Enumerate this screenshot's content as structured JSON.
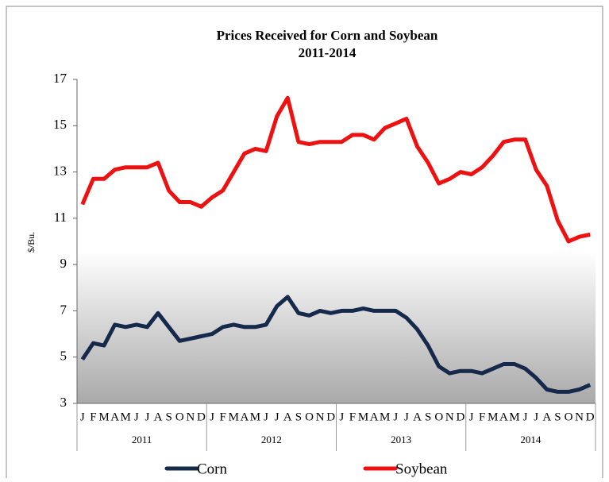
{
  "chart_data": {
    "type": "line",
    "title": "Prices Received for Corn and Soybean",
    "subtitle": "2011-2014",
    "y_label": "$/Bu.",
    "categories": [
      "J",
      "F",
      "M",
      "A",
      "M",
      "J",
      "J",
      "A",
      "S",
      "O",
      "N",
      "D",
      "J",
      "F",
      "M",
      "A",
      "M",
      "J",
      "J",
      "A",
      "S",
      "O",
      "N",
      "D",
      "J",
      "F",
      "M",
      "A",
      "M",
      "J",
      "J",
      "A",
      "S",
      "O",
      "N",
      "D",
      "J",
      "F",
      "M",
      "A",
      "M",
      "J",
      "J",
      "A",
      "S",
      "O",
      "N",
      "D"
    ],
    "year_groups": [
      "2011",
      "2012",
      "2013",
      "2014"
    ],
    "series": [
      {
        "name": "Corn",
        "color": "#15294a",
        "values": [
          4.9,
          5.6,
          5.5,
          6.4,
          6.3,
          6.4,
          6.3,
          6.9,
          6.3,
          5.7,
          5.8,
          5.9,
          6.0,
          6.3,
          6.4,
          6.3,
          6.3,
          6.4,
          7.2,
          7.6,
          6.9,
          6.8,
          7.0,
          6.9,
          7.0,
          7.0,
          7.1,
          7.0,
          7.0,
          7.0,
          6.7,
          6.2,
          5.5,
          4.6,
          4.3,
          4.4,
          4.4,
          4.3,
          4.5,
          4.7,
          4.7,
          4.5,
          4.1,
          3.6,
          3.5,
          3.5,
          3.6,
          3.8
        ]
      },
      {
        "name": "Soybean",
        "color": "#ee1111",
        "values": [
          11.6,
          12.7,
          12.7,
          13.1,
          13.2,
          13.2,
          13.2,
          13.4,
          12.2,
          11.7,
          11.7,
          11.5,
          11.9,
          12.2,
          13.0,
          13.8,
          14.0,
          13.9,
          15.4,
          16.2,
          14.3,
          14.2,
          14.3,
          14.3,
          14.3,
          14.6,
          14.6,
          14.4,
          14.9,
          15.1,
          15.3,
          14.1,
          13.4,
          12.5,
          12.7,
          13.0,
          12.9,
          13.2,
          13.7,
          14.3,
          14.4,
          14.4,
          13.1,
          12.4,
          10.9,
          10.0,
          10.2,
          10.3
        ]
      }
    ],
    "ylim": [
      3,
      17
    ],
    "yticks": [
      3,
      5,
      7,
      9,
      11,
      13,
      15,
      17
    ],
    "grid": false,
    "legend": "bottom"
  }
}
